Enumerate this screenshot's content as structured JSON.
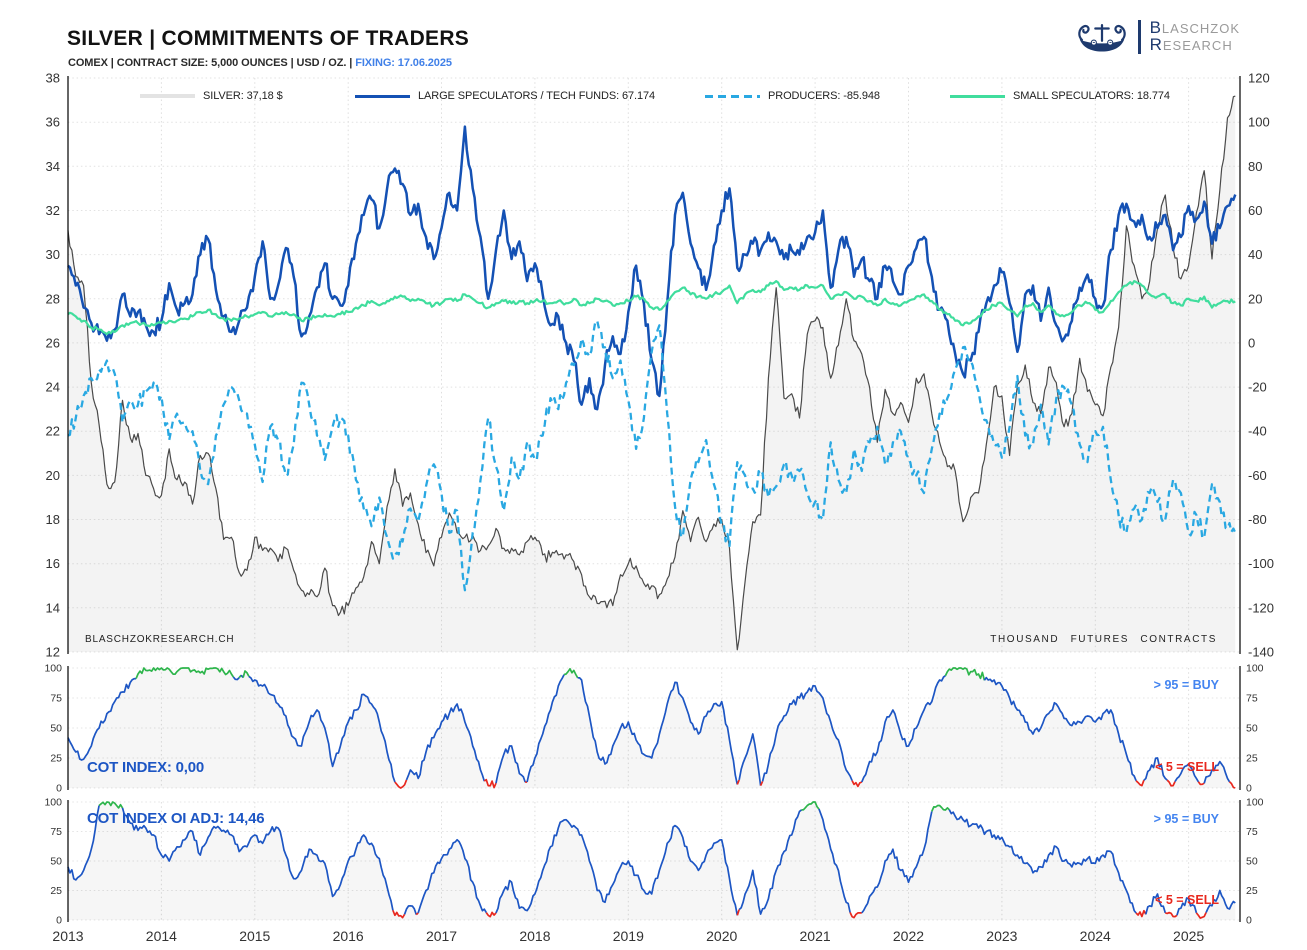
{
  "header": {
    "title": "SILVER | COMMITMENTS OF TRADERS",
    "subtitle": "COMEX | CONTRACT SIZE: 5,000 OUNCES | USD / OZ. | ",
    "fixing": "FIXING: 17.06.2025"
  },
  "logo": {
    "l1_initial": "B",
    "l1_rest": "LASCHZOK",
    "l2_initial": "R",
    "l2_rest": "ESEARCH"
  },
  "footer": {
    "watermark": "BLASCHZOKRESEARCH.CH",
    "unit_label": "THOUSAND FUTURES CONTRACTS"
  },
  "chart_data": [
    {
      "type": "line",
      "title": "SILVER | COMMITMENTS OF TRADERS",
      "x_axis": {
        "start": 2013,
        "step_years": 0.0833333,
        "domain": [
          2013,
          2025.55
        ],
        "year_ticks": [
          2013,
          2014,
          2015,
          2016,
          2017,
          2018,
          2019,
          2020,
          2021,
          2022,
          2023,
          2024,
          2025
        ]
      },
      "y_left": {
        "label": "USD / OZ.",
        "range": [
          12,
          38
        ],
        "ticks": [
          38,
          36,
          34,
          32,
          30,
          28,
          26,
          24,
          22,
          20,
          18,
          16,
          14,
          12
        ]
      },
      "y_right": {
        "label": "THOUSAND FUTURES CONTRACTS",
        "range": [
          -140,
          120
        ],
        "ticks": [
          120,
          100,
          80,
          60,
          40,
          20,
          0,
          -20,
          -40,
          -60,
          -80,
          -100,
          -120,
          -140
        ]
      },
      "grid": true,
      "legend_position": "top-inside",
      "series": [
        {
          "name": "SILVER",
          "legend_label": "SILVER: 37,18 $",
          "current": 37.18,
          "axis": "left",
          "color": "#4a4a4a",
          "swatch": "#e3e3e3",
          "fill": "rgba(140,140,140,0.10)",
          "style": "solid",
          "width": 1.2,
          "noise": 0.28,
          "values": [
            31.1,
            29.0,
            28.6,
            24.2,
            22.3,
            19.6,
            19.7,
            23.4,
            21.7,
            21.9,
            20.0,
            19.4,
            19.1,
            21.2,
            19.8,
            19.7,
            18.7,
            20.9,
            21.0,
            19.4,
            17.1,
            17.2,
            15.6,
            15.7,
            17.2,
            16.6,
            16.7,
            16.1,
            16.7,
            15.7,
            14.8,
            14.6,
            14.5,
            15.8,
            14.1,
            13.8,
            14.1,
            14.9,
            15.4,
            17.0,
            16.0,
            18.6,
            20.3,
            18.6,
            19.2,
            17.8,
            16.5,
            15.9,
            17.2,
            18.3,
            17.4,
            17.2,
            17.3,
            16.6,
            16.8,
            17.6,
            16.7,
            16.7,
            16.4,
            17.0,
            17.2,
            16.4,
            16.3,
            16.4,
            16.4,
            16.1,
            15.5,
            14.5,
            14.2,
            14.3,
            14.1,
            15.5,
            16.0,
            15.9,
            15.1,
            15.0,
            14.6,
            15.3,
            16.3,
            18.4,
            17.0,
            18.1,
            17.0,
            17.8,
            18.0,
            16.7,
            12.1,
            15.2,
            17.9,
            18.2,
            24.4,
            28.5,
            23.5,
            23.7,
            22.6,
            26.4,
            27.0,
            26.7,
            24.4,
            25.9,
            28.0,
            26.1,
            25.5,
            24.0,
            21.5,
            23.9,
            22.8,
            23.3,
            22.4,
            24.4,
            24.6,
            22.8,
            21.5,
            20.4,
            20.2,
            17.9,
            19.0,
            19.2,
            21.4,
            24.0,
            23.6,
            20.9,
            24.1,
            25.0,
            23.3,
            22.8,
            24.9,
            24.2,
            22.2,
            22.8,
            25.3,
            23.8,
            23.2,
            22.7,
            24.9,
            26.7,
            31.3,
            29.5,
            28.0,
            28.8,
            31.2,
            32.7,
            30.3,
            28.9,
            29.5,
            31.9,
            33.8,
            29.8,
            32.9,
            36.2,
            37.18
          ]
        },
        {
          "name": "LARGE SPECULATORS / TECH FUNDS",
          "legend_label": "LARGE SPECULATORS / TECH FUNDS: 67.174",
          "current": 67.174,
          "axis": "right",
          "color": "#1451b4",
          "style": "solid",
          "width": 2.5,
          "noise": 3.8,
          "values": [
            35,
            26,
            16,
            9,
            4,
            1,
            6,
            22,
            12,
            14,
            8,
            5,
            10,
            27,
            15,
            18,
            22,
            40,
            47,
            24,
            12,
            5,
            10,
            16,
            30,
            46,
            20,
            26,
            43,
            30,
            3,
            12,
            25,
            36,
            20,
            17,
            26,
            45,
            58,
            65,
            52,
            70,
            79,
            72,
            58,
            63,
            48,
            38,
            52,
            68,
            60,
            98,
            70,
            48,
            20,
            42,
            60,
            38,
            46,
            28,
            36,
            22,
            8,
            12,
            0,
            -8,
            -28,
            -16,
            -30,
            -10,
            3,
            -5,
            14,
            35,
            18,
            -8,
            -24,
            18,
            58,
            68,
            45,
            34,
            24,
            44,
            60,
            70,
            34,
            40,
            45,
            42,
            50,
            46,
            38,
            42,
            40,
            48,
            50,
            60,
            25,
            42,
            48,
            30,
            38,
            28,
            20,
            35,
            28,
            22,
            35,
            43,
            48,
            30,
            15,
            10,
            -5,
            -14,
            -8,
            5,
            18,
            26,
            32,
            18,
            -4,
            22,
            26,
            10,
            25,
            8,
            2,
            10,
            25,
            31,
            20,
            17,
            42,
            58,
            63,
            55,
            58,
            48,
            52,
            58,
            42,
            48,
            62,
            56,
            64,
            45,
            52,
            62,
            67.174
          ]
        },
        {
          "name": "PRODUCERS",
          "legend_label": "PRODUCERS: -85.948",
          "current": -85.948,
          "axis": "right",
          "color": "#29a8e2",
          "style": "dashed",
          "width": 2.3,
          "noise": 3.8,
          "values": [
            -42,
            -34,
            -24,
            -16,
            -12,
            -8,
            -14,
            -36,
            -26,
            -28,
            -22,
            -18,
            -24,
            -44,
            -32,
            -36,
            -40,
            -58,
            -64,
            -42,
            -28,
            -20,
            -26,
            -32,
            -46,
            -63,
            -38,
            -44,
            -60,
            -46,
            -18,
            -28,
            -42,
            -53,
            -38,
            -34,
            -42,
            -62,
            -75,
            -83,
            -70,
            -88,
            -96,
            -90,
            -75,
            -81,
            -65,
            -55,
            -68,
            -86,
            -76,
            -112,
            -86,
            -62,
            -34,
            -56,
            -76,
            -52,
            -62,
            -45,
            -53,
            -42,
            -25,
            -30,
            -18,
            -10,
            2,
            -6,
            10,
            -2,
            -16,
            -8,
            -26,
            -48,
            -34,
            -4,
            8,
            -32,
            -74,
            -88,
            -62,
            -54,
            -44,
            -64,
            -82,
            -92,
            -54,
            -60,
            -66,
            -60,
            -70,
            -65,
            -55,
            -60,
            -58,
            -68,
            -72,
            -80,
            -45,
            -62,
            -68,
            -48,
            -58,
            -45,
            -38,
            -55,
            -45,
            -40,
            -52,
            -60,
            -68,
            -48,
            -32,
            -25,
            -12,
            -2,
            -8,
            -22,
            -35,
            -46,
            -52,
            -38,
            -15,
            -42,
            -46,
            -28,
            -46,
            -25,
            -20,
            -28,
            -46,
            -54,
            -40,
            -38,
            -62,
            -78,
            -86,
            -75,
            -80,
            -68,
            -72,
            -80,
            -62,
            -68,
            -86,
            -78,
            -88,
            -64,
            -72,
            -84,
            -85.948
          ]
        },
        {
          "name": "SMALL SPECULATORS",
          "legend_label": "SMALL SPECULATORS: 18.774",
          "current": 18.774,
          "axis": "right",
          "color": "#40dd9d",
          "style": "solid",
          "width": 2.2,
          "noise": 0.9,
          "values": [
            13,
            12,
            10,
            7,
            6,
            4,
            5,
            8,
            9,
            9,
            8,
            8,
            9,
            10,
            10,
            11,
            12,
            14,
            15,
            13,
            11,
            10,
            11,
            12,
            13,
            14,
            12,
            13,
            14,
            13,
            10,
            11,
            12,
            13,
            12,
            13,
            14,
            16,
            17,
            19,
            17,
            19,
            21,
            21,
            19,
            20,
            18,
            17,
            18,
            20,
            19,
            22,
            20,
            18,
            16,
            18,
            19,
            18,
            19,
            18,
            19,
            19,
            18,
            19,
            18,
            20,
            17,
            18,
            20,
            19,
            17,
            18,
            19,
            21,
            20,
            16,
            15,
            19,
            23,
            25,
            22,
            21,
            20,
            22,
            23,
            26,
            18,
            22,
            24,
            23,
            26,
            28,
            24,
            25,
            24,
            26,
            25,
            26,
            20,
            22,
            23,
            20,
            21,
            19,
            17,
            20,
            18,
            17,
            19,
            21,
            22,
            19,
            15,
            13,
            10,
            8,
            9,
            12,
            15,
            17,
            18,
            15,
            12,
            17,
            18,
            14,
            17,
            13,
            12,
            14,
            17,
            18,
            15,
            14,
            19,
            23,
            26,
            28,
            26,
            22,
            21,
            22,
            18,
            17,
            20,
            19,
            21,
            16,
            18,
            19,
            18.774
          ]
        }
      ]
    },
    {
      "type": "line",
      "name": "COT INDEX",
      "label": "COT INDEX: 0,00",
      "current": 0.0,
      "annotations": {
        "buy": "> 95 = BUY",
        "sell": "< 5 = SELL"
      },
      "thresholds": {
        "buy": 93,
        "sell": 6.5
      },
      "y_ticks": [
        100,
        75,
        50,
        25,
        0
      ],
      "ylim": [
        0,
        100
      ],
      "noise": 3.2,
      "colors": {
        "line": "#1d56c4",
        "buy": "#2db54b",
        "sell": "#e8281e"
      },
      "values": [
        42,
        30,
        24,
        35,
        50,
        62,
        72,
        80,
        88,
        95,
        98,
        100,
        100,
        99,
        97,
        100,
        98,
        96,
        99,
        100,
        97,
        95,
        92,
        96,
        90,
        85,
        78,
        70,
        60,
        42,
        35,
        55,
        65,
        50,
        18,
        35,
        55,
        65,
        78,
        70,
        55,
        30,
        5,
        1,
        15,
        8,
        30,
        42,
        55,
        62,
        70,
        55,
        35,
        15,
        2,
        4,
        28,
        35,
        12,
        5,
        25,
        45,
        65,
        85,
        95,
        98,
        90,
        60,
        30,
        20,
        35,
        50,
        55,
        40,
        28,
        25,
        45,
        70,
        88,
        75,
        55,
        45,
        60,
        70,
        72,
        40,
        3,
        25,
        45,
        2,
        20,
        45,
        60,
        70,
        75,
        80,
        85,
        75,
        55,
        40,
        15,
        3,
        5,
        22,
        30,
        55,
        65,
        45,
        35,
        50,
        65,
        72,
        90,
        97,
        100,
        99,
        97,
        95,
        92,
        90,
        85,
        75,
        65,
        55,
        45,
        50,
        62,
        70,
        58,
        52,
        55,
        60,
        55,
        62,
        65,
        45,
        28,
        10,
        2,
        15,
        25,
        8,
        2,
        12,
        20,
        8,
        4,
        15,
        22,
        8,
        0
      ]
    },
    {
      "type": "line",
      "name": "COT INDEX OI ADJ",
      "label": "COT INDEX OI ADJ: 14,46",
      "current": 14.46,
      "annotations": {
        "buy": "> 95 = BUY",
        "sell": "< 5 = SELL"
      },
      "thresholds": {
        "buy": 93,
        "sell": 6.5
      },
      "y_ticks": [
        100,
        75,
        50,
        25,
        0
      ],
      "ylim": [
        0,
        100
      ],
      "noise": 3.2,
      "colors": {
        "line": "#1d56c4",
        "buy": "#2db54b",
        "sell": "#e8281e"
      },
      "values": [
        45,
        34,
        42,
        60,
        97,
        100,
        99,
        95,
        82,
        76,
        78,
        72,
        55,
        50,
        62,
        68,
        75,
        55,
        70,
        78,
        76,
        72,
        58,
        62,
        72,
        65,
        75,
        78,
        55,
        35,
        42,
        60,
        55,
        48,
        20,
        30,
        50,
        60,
        72,
        65,
        52,
        28,
        4,
        2,
        12,
        6,
        25,
        40,
        52,
        60,
        68,
        52,
        32,
        12,
        4,
        6,
        25,
        32,
        10,
        8,
        22,
        42,
        62,
        78,
        85,
        80,
        72,
        50,
        25,
        15,
        30,
        45,
        50,
        38,
        25,
        22,
        42,
        65,
        80,
        70,
        50,
        42,
        55,
        65,
        68,
        35,
        4,
        22,
        42,
        5,
        18,
        42,
        58,
        72,
        92,
        97,
        100,
        85,
        60,
        42,
        15,
        2,
        6,
        20,
        28,
        50,
        60,
        42,
        32,
        45,
        60,
        92,
        97,
        95,
        88,
        85,
        80,
        78,
        75,
        72,
        70,
        62,
        55,
        48,
        40,
        45,
        55,
        62,
        50,
        45,
        48,
        52,
        48,
        55,
        58,
        40,
        25,
        8,
        3,
        12,
        22,
        6,
        3,
        10,
        18,
        6,
        3,
        12,
        25,
        10,
        14.46
      ]
    }
  ]
}
